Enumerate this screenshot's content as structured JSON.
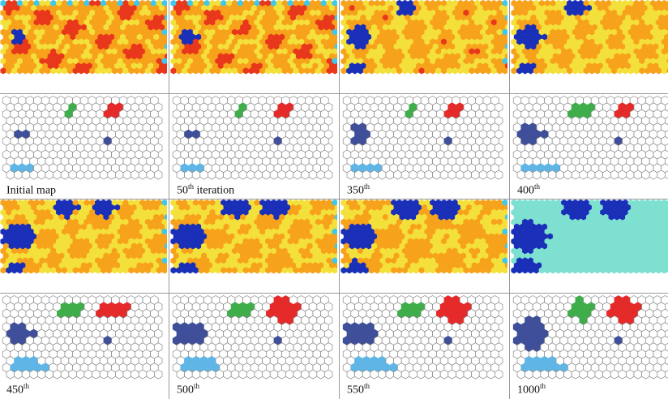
{
  "columns": [
    {
      "id": "c1",
      "caption_main": "Initial map",
      "caption_sup": "",
      "caption_rest": ""
    },
    {
      "id": "c2",
      "caption_main": "50",
      "caption_sup": "th",
      "caption_rest": " iteration"
    },
    {
      "id": "c3",
      "caption_main": "350",
      "caption_sup": "th",
      "caption_rest": ""
    },
    {
      "id": "c4",
      "caption_main": "400",
      "caption_sup": "th",
      "caption_rest": ""
    },
    {
      "id": "c5",
      "caption_main": "450",
      "caption_sup": "th",
      "caption_rest": ""
    },
    {
      "id": "c6",
      "caption_main": "500",
      "caption_sup": "th",
      "caption_rest": ""
    },
    {
      "id": "c7",
      "caption_main": "550",
      "caption_sup": "th",
      "caption_rest": ""
    },
    {
      "id": "c8",
      "caption_main": "1000",
      "caption_sup": "th",
      "caption_rest": ""
    }
  ],
  "colors": {
    "heat_hot": "#e8371a",
    "heat_warm": "#f7a21b",
    "heat_yellow": "#f4e03a",
    "heat_cool": "#7ee0d0",
    "cluster_dark_blue": "#1a2fb8",
    "cluster_cyan": "#3fc8e8",
    "node_green": "#3fae4a",
    "node_red": "#e52a2a",
    "node_navy": "#3f4f9a",
    "node_lightblue": "#5fb6e6",
    "hex_outline": "#888888"
  }
}
